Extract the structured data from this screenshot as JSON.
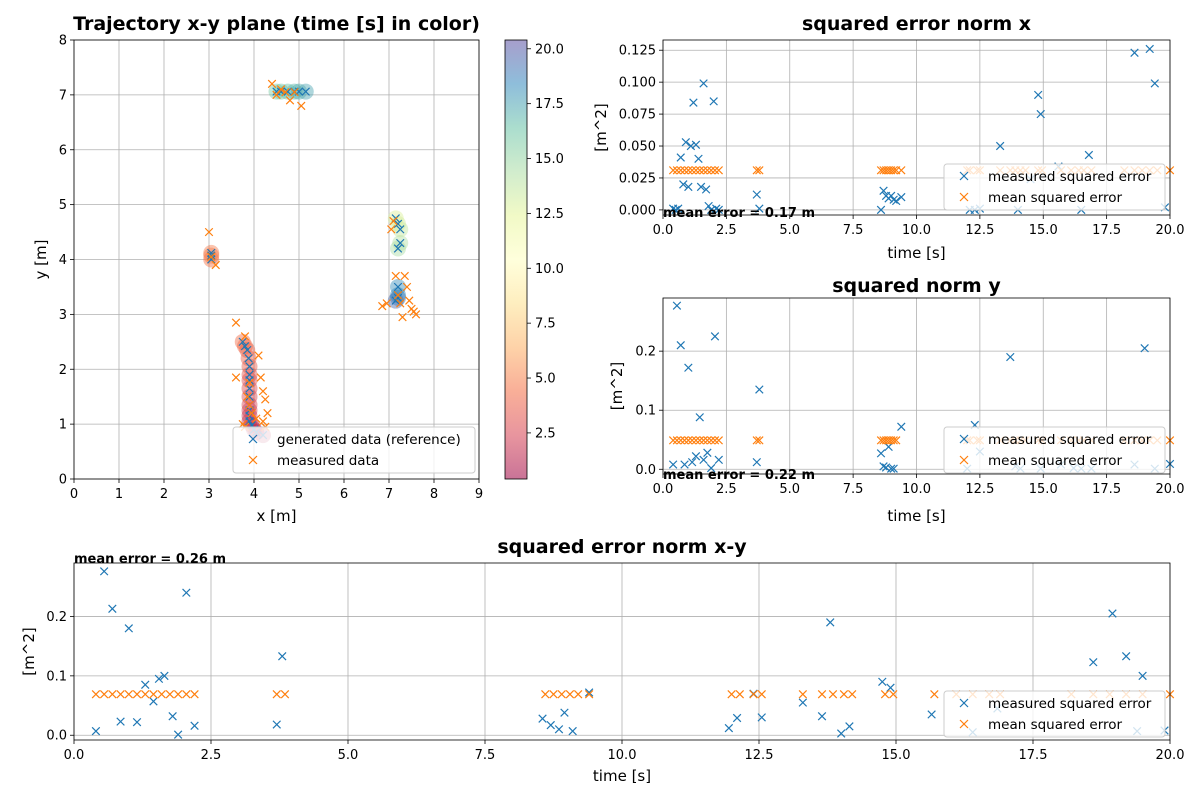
{
  "chart_data": [
    {
      "id": "traj",
      "type": "scatter",
      "title": "Trajectory x-y plane  (time [s] in color)",
      "xlabel": "x [m]",
      "ylabel": "y [m]",
      "xlim": [
        0,
        9
      ],
      "ylim": [
        0,
        8
      ],
      "xticks": [
        "0",
        "1",
        "2",
        "3",
        "4",
        "5",
        "6",
        "7",
        "8",
        "9"
      ],
      "yticks": [
        "0",
        "1",
        "2",
        "3",
        "4",
        "5",
        "6",
        "7",
        "8"
      ],
      "grid": true,
      "legend": "lower-right",
      "colorbar": {
        "range": [
          0.4,
          20.4
        ],
        "ticks": [
          "2.5",
          "5.0",
          "7.5",
          "10.0",
          "12.5",
          "15.0",
          "17.5",
          "20.0"
        ]
      },
      "series": [
        {
          "name": "generated data (reference)",
          "color": "#1f77b4",
          "x": [
            3.05,
            3.05,
            3.05,
            3.75,
            3.8,
            3.85,
            3.88,
            3.9,
            3.9,
            3.9,
            3.9,
            3.9,
            3.9,
            3.9,
            3.9,
            3.9,
            3.95,
            4.0,
            4.05,
            4.2,
            4.5,
            4.6,
            4.75,
            4.9,
            5.0,
            5.15,
            7.15,
            7.2,
            7.2,
            7.2,
            7.2,
            7.25,
            7.25,
            7.2,
            7.15
          ],
          "y": [
            4.0,
            4.07,
            4.12,
            2.5,
            2.42,
            2.35,
            2.2,
            2.05,
            1.9,
            1.8,
            1.65,
            1.5,
            1.35,
            1.25,
            1.15,
            1.05,
            0.98,
            0.9,
            0.85,
            0.8,
            7.06,
            7.06,
            7.06,
            7.06,
            7.06,
            7.06,
            3.25,
            3.3,
            3.35,
            3.5,
            4.2,
            4.3,
            4.55,
            4.65,
            4.75
          ],
          "time": [
            4.5,
            4.7,
            4.9,
            4.3,
            4.1,
            3.9,
            3.7,
            3.5,
            3.3,
            3.1,
            2.9,
            2.7,
            2.5,
            2.3,
            2.1,
            1.9,
            1.7,
            1.5,
            1.3,
            1.1,
            15.8,
            16.2,
            16.5,
            16.8,
            17.1,
            17.4,
            19.5,
            19.0,
            18.6,
            18.2,
            14.5,
            14.2,
            13.6,
            13.2,
            12.8
          ]
        },
        {
          "name": "measured data",
          "color": "#ff7f0e",
          "x": [
            3.0,
            3.05,
            3.15,
            3.6,
            3.6,
            3.8,
            3.85,
            3.9,
            3.95,
            4.05,
            4.1,
            4.15,
            4.2,
            4.25,
            4.3,
            4.4,
            4.5,
            4.6,
            4.7,
            4.8,
            4.9,
            5.05,
            6.85,
            6.95,
            7.05,
            7.1,
            7.15,
            7.2,
            7.25,
            7.3,
            7.35,
            7.4,
            7.45,
            7.5,
            7.55,
            7.6,
            3.75,
            3.8,
            3.9,
            4.2,
            4.25
          ],
          "y": [
            4.5,
            4.05,
            3.9,
            2.85,
            1.85,
            2.6,
            1.5,
            1.35,
            1.2,
            1.1,
            2.25,
            1.85,
            1.6,
            1.45,
            1.2,
            7.2,
            7.0,
            7.1,
            7.05,
            6.9,
            7.05,
            6.8,
            3.15,
            3.2,
            4.55,
            4.7,
            3.7,
            3.35,
            3.2,
            2.95,
            3.7,
            3.5,
            3.25,
            3.1,
            3.05,
            3.0,
            1.0,
            0.95,
            1.75,
            1.05,
            0.95
          ],
          "time": [
            4.7,
            4.9,
            5.0,
            4.3,
            2.0,
            4.2,
            2.6,
            2.4,
            2.2,
            1.9,
            3.5,
            3.0,
            2.7,
            2.5,
            2.2,
            15.9,
            16.3,
            16.6,
            16.9,
            17.2,
            17.5,
            17.8,
            19.4,
            19.2,
            13.4,
            13.0,
            12.6,
            18.8,
            18.4,
            18.0,
            12.2,
            12.0,
            19.6,
            19.8,
            20.0,
            20.2,
            1.2,
            1.0,
            3.2,
            1.4,
            0.8
          ]
        }
      ]
    },
    {
      "id": "errx",
      "type": "scatter",
      "title": "squared error norm  x",
      "xlabel": "time [s]",
      "ylabel": "[m^2]",
      "xlim": [
        0,
        20
      ],
      "ylim": [
        -0.004,
        0.133
      ],
      "xticks": [
        "0.0",
        "2.5",
        "5.0",
        "7.5",
        "10.0",
        "12.5",
        "15.0",
        "17.5",
        "20.0"
      ],
      "yticks": [
        "0.000",
        "0.025",
        "0.050",
        "0.075",
        "0.100",
        "0.125"
      ],
      "grid": true,
      "legend": "lower-right",
      "annotation": "mean error = 0.17 m",
      "series": [
        {
          "name": "measured squared error",
          "color": "#1f77b4",
          "x": [
            0.4,
            0.5,
            0.6,
            0.7,
            0.8,
            0.9,
            1.0,
            1.1,
            1.2,
            1.3,
            1.4,
            1.5,
            1.6,
            1.7,
            1.8,
            1.9,
            2.0,
            2.1,
            2.2,
            3.7,
            3.8,
            8.6,
            8.7,
            8.8,
            8.9,
            9.0,
            9.1,
            9.2,
            9.4,
            12.1,
            12.3,
            12.5,
            13.3,
            14.0,
            14.5,
            14.8,
            14.9,
            15.6,
            16.5,
            16.8,
            18.6,
            19.2,
            19.4,
            19.8
          ],
          "y": [
            0.001,
            0.0,
            0.001,
            0.041,
            0.02,
            0.053,
            0.018,
            0.05,
            0.084,
            0.051,
            0.04,
            0.018,
            0.099,
            0.016,
            0.003,
            0.0,
            0.085,
            0.001,
            0.0,
            0.012,
            0.001,
            0.0,
            0.015,
            0.011,
            0.009,
            0.011,
            0.008,
            0.007,
            0.01,
            0.0,
            0.0,
            0.001,
            0.05,
            0.0,
            0.024,
            0.09,
            0.075,
            0.034,
            0.0,
            0.043,
            0.123,
            0.126,
            0.099,
            0.002
          ]
        },
        {
          "name": "mean squared error",
          "color": "#ff7f0e",
          "x": [
            0.4,
            0.55,
            0.7,
            0.85,
            1.0,
            1.15,
            1.3,
            1.45,
            1.6,
            1.75,
            1.9,
            2.05,
            2.2,
            3.7,
            3.8,
            8.6,
            8.7,
            8.8,
            8.9,
            9.0,
            9.1,
            9.2,
            9.4,
            12.0,
            12.1,
            12.4,
            12.5,
            13.3,
            13.7,
            13.9,
            14.1,
            14.3,
            14.8,
            14.95,
            15.7,
            16.1,
            16.4,
            16.6,
            16.9,
            18.2,
            18.6,
            18.9,
            19.2,
            19.5,
            20.0
          ],
          "y": [
            0.031,
            0.031,
            0.031,
            0.031,
            0.031,
            0.031,
            0.031,
            0.031,
            0.031,
            0.031,
            0.031,
            0.031,
            0.031,
            0.031,
            0.031,
            0.031,
            0.031,
            0.031,
            0.031,
            0.031,
            0.031,
            0.031,
            0.031,
            0.031,
            0.031,
            0.031,
            0.031,
            0.031,
            0.031,
            0.031,
            0.031,
            0.031,
            0.031,
            0.031,
            0.031,
            0.031,
            0.031,
            0.031,
            0.031,
            0.031,
            0.031,
            0.031,
            0.031,
            0.031,
            0.031
          ]
        }
      ]
    },
    {
      "id": "erry",
      "type": "scatter",
      "title": "squared norm  y",
      "xlabel": "time [s]",
      "ylabel": "[m^2]",
      "xlim": [
        0,
        20
      ],
      "ylim": [
        -0.008,
        0.29
      ],
      "xticks": [
        "0.0",
        "2.5",
        "5.0",
        "7.5",
        "10.0",
        "12.5",
        "15.0",
        "17.5",
        "20.0"
      ],
      "yticks": [
        "0.0",
        "0.1",
        "0.2"
      ],
      "grid": true,
      "legend": "lower-right",
      "annotation": "mean error = 0.22 m",
      "series": [
        {
          "name": "measured squared error",
          "color": "#1f77b4",
          "x": [
            0.4,
            0.55,
            0.7,
            0.85,
            1.0,
            1.15,
            1.3,
            1.45,
            1.6,
            1.75,
            1.9,
            2.05,
            2.2,
            3.7,
            3.8,
            8.6,
            8.7,
            8.8,
            8.9,
            9.0,
            9.1,
            9.4,
            12.0,
            12.3,
            12.5,
            13.7,
            13.9,
            14.1,
            14.9,
            15.7,
            16.2,
            16.5,
            16.9,
            18.6,
            19.0,
            19.4,
            20.0
          ],
          "y": [
            0.008,
            0.277,
            0.21,
            0.008,
            0.172,
            0.012,
            0.022,
            0.088,
            0.016,
            0.028,
            0.002,
            0.225,
            0.016,
            0.012,
            0.135,
            0.027,
            0.005,
            0.003,
            0.038,
            0.001,
            0.001,
            0.072,
            0.001,
            0.075,
            0.03,
            0.19,
            0.005,
            0.001,
            0.001,
            0.008,
            0.002,
            0.001,
            0.001,
            0.008,
            0.205,
            0.001,
            0.009
          ]
        },
        {
          "name": "mean squared error",
          "color": "#ff7f0e",
          "x": [
            0.4,
            0.55,
            0.7,
            0.85,
            1.0,
            1.15,
            1.3,
            1.45,
            1.6,
            1.75,
            1.9,
            2.05,
            2.2,
            3.7,
            3.8,
            8.6,
            8.7,
            8.8,
            8.9,
            9.0,
            9.1,
            9.2,
            12.0,
            12.1,
            12.4,
            12.5,
            13.3,
            13.7,
            13.9,
            14.1,
            14.3,
            14.8,
            14.95,
            15.7,
            16.1,
            16.4,
            16.6,
            16.9,
            18.2,
            18.6,
            18.9,
            19.2,
            19.5,
            20.0
          ],
          "y": [
            0.049,
            0.049,
            0.049,
            0.049,
            0.049,
            0.049,
            0.049,
            0.049,
            0.049,
            0.049,
            0.049,
            0.049,
            0.049,
            0.049,
            0.049,
            0.049,
            0.049,
            0.049,
            0.049,
            0.049,
            0.049,
            0.049,
            0.049,
            0.049,
            0.049,
            0.049,
            0.049,
            0.049,
            0.049,
            0.049,
            0.049,
            0.049,
            0.049,
            0.049,
            0.049,
            0.049,
            0.049,
            0.049,
            0.049,
            0.049,
            0.049,
            0.049,
            0.049,
            0.049
          ]
        }
      ]
    },
    {
      "id": "errxy",
      "type": "scatter",
      "title": "squared error norm  x-y",
      "xlabel": "time [s]",
      "ylabel": "[m^2]",
      "xlim": [
        0,
        20
      ],
      "ylim": [
        -0.008,
        0.29
      ],
      "xticks": [
        "0.0",
        "2.5",
        "5.0",
        "7.5",
        "10.0",
        "12.5",
        "15.0",
        "17.5",
        "20.0"
      ],
      "yticks": [
        "0.0",
        "0.1",
        "0.2"
      ],
      "grid": true,
      "legend": "lower-right",
      "annotation": "mean error = 0.26 m",
      "series": [
        {
          "name": "measured squared error",
          "color": "#1f77b4",
          "x": [
            0.4,
            0.55,
            0.7,
            0.85,
            1.0,
            1.15,
            1.3,
            1.45,
            1.55,
            1.65,
            1.8,
            1.9,
            2.05,
            2.2,
            3.7,
            3.8,
            8.55,
            8.7,
            8.85,
            8.95,
            9.1,
            9.4,
            11.95,
            12.1,
            12.4,
            12.55,
            13.3,
            13.65,
            13.8,
            14.0,
            14.15,
            14.75,
            14.9,
            15.65,
            16.4,
            16.85,
            18.6,
            18.95,
            19.2,
            19.4,
            19.5,
            19.9
          ],
          "y": [
            0.007,
            0.276,
            0.213,
            0.023,
            0.18,
            0.022,
            0.085,
            0.057,
            0.095,
            0.1,
            0.032,
            0.001,
            0.24,
            0.016,
            0.018,
            0.133,
            0.028,
            0.017,
            0.01,
            0.038,
            0.007,
            0.072,
            0.012,
            0.029,
            0.07,
            0.03,
            0.055,
            0.032,
            0.19,
            0.003,
            0.015,
            0.09,
            0.08,
            0.035,
            0.005,
            0.045,
            0.123,
            0.205,
            0.133,
            0.007,
            0.1,
            0.008
          ]
        },
        {
          "name": "mean squared error",
          "color": "#ff7f0e",
          "x": [
            0.4,
            0.55,
            0.7,
            0.85,
            1.0,
            1.15,
            1.3,
            1.45,
            1.6,
            1.75,
            1.9,
            2.05,
            2.2,
            3.7,
            3.85,
            8.6,
            8.75,
            8.9,
            9.05,
            9.2,
            9.4,
            12.0,
            12.15,
            12.4,
            12.55,
            13.3,
            13.65,
            13.85,
            14.05,
            14.2,
            14.8,
            14.95,
            15.7,
            16.1,
            16.4,
            16.7,
            16.9,
            18.2,
            18.6,
            18.9,
            19.2,
            19.5,
            20.0
          ],
          "y": [
            0.069,
            0.069,
            0.069,
            0.069,
            0.069,
            0.069,
            0.069,
            0.069,
            0.069,
            0.069,
            0.069,
            0.069,
            0.069,
            0.069,
            0.069,
            0.069,
            0.069,
            0.069,
            0.069,
            0.069,
            0.069,
            0.069,
            0.069,
            0.069,
            0.069,
            0.069,
            0.069,
            0.069,
            0.069,
            0.069,
            0.069,
            0.069,
            0.069,
            0.069,
            0.069,
            0.069,
            0.069,
            0.069,
            0.069,
            0.069,
            0.069,
            0.069,
            0.069
          ]
        }
      ]
    }
  ]
}
